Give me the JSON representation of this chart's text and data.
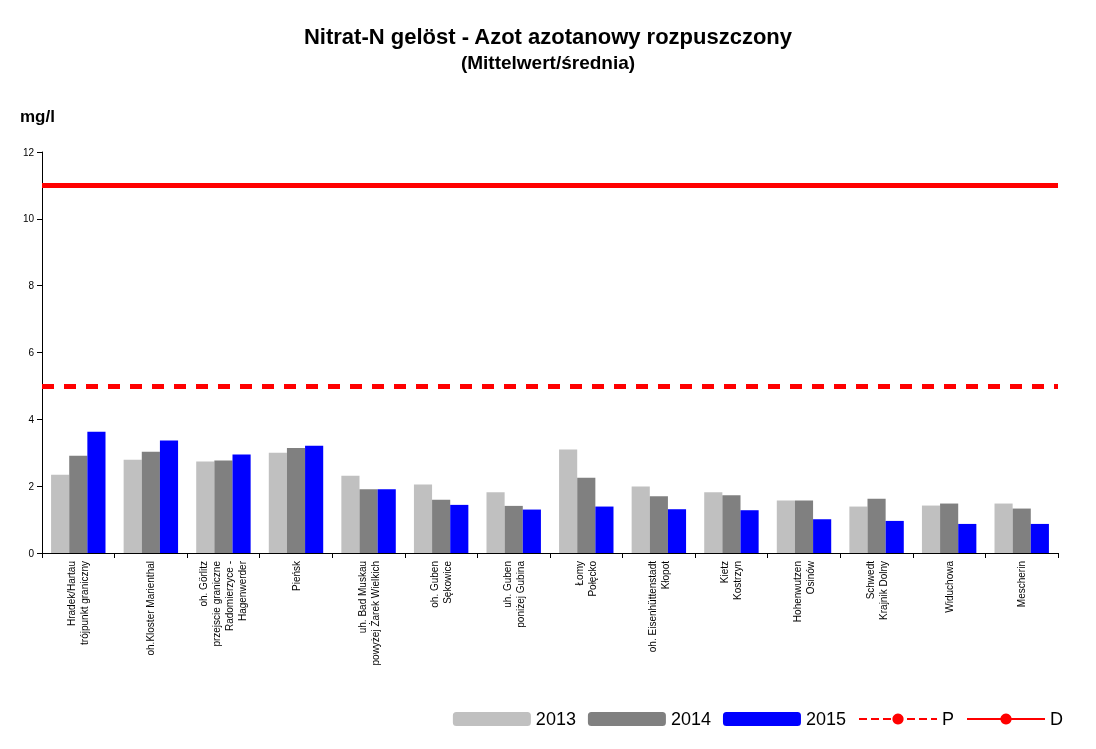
{
  "chart_data": {
    "type": "bar",
    "title": "Nitrat-N gelöst - Azot azotanowy rozpuszczony",
    "subtitle": "(Mittelwert/średnia)",
    "ylabel": "mg/l",
    "categories": [
      "Hradek/Hartau\ntrójpunkt graniczny",
      "oh.Kloster Marienthal",
      "oh. Görlitz\nprzejscie graniczne\nRadomierzyce -\nHagenwerder",
      "Pieńsk",
      "uh. Bad Muskau\npowyżej Żarek Wielkich",
      "oh. Guben\nSękowice",
      "uh. Guben\nponiżej Gubina",
      "Łomy\nPołęcko",
      "oh. Eisenhüttenstadt\nKłopot",
      "Kietz\nKostrzyn",
      "Hohenwutzen\nOsinów",
      "Schwedt\nKrajnik Dolny",
      "Widuchowa",
      "Mescherin"
    ],
    "series": [
      {
        "name": "2013",
        "color": "#c0c0c0",
        "values": [
          2.34,
          2.79,
          2.74,
          3.0,
          2.31,
          2.05,
          1.82,
          3.1,
          1.99,
          1.82,
          1.57,
          1.39,
          1.42,
          1.48
        ]
      },
      {
        "name": "2014",
        "color": "#808080",
        "values": [
          2.91,
          3.03,
          2.77,
          3.14,
          1.91,
          1.59,
          1.41,
          2.25,
          1.7,
          1.73,
          1.57,
          1.62,
          1.48,
          1.33
        ]
      },
      {
        "name": "2015",
        "color": "#0000ff",
        "values": [
          3.63,
          3.37,
          2.95,
          3.21,
          1.91,
          1.44,
          1.3,
          1.39,
          1.31,
          1.28,
          1.01,
          0.96,
          0.87,
          0.87
        ]
      }
    ],
    "ref_lines": [
      {
        "axis": "y",
        "value": 5,
        "label": "P",
        "color": "#ff0000",
        "line_style": "dashed"
      },
      {
        "axis": "y",
        "value": 11,
        "label": "D",
        "color": "#ff0000",
        "line_style": "solid"
      }
    ],
    "ylim": [
      0,
      12
    ],
    "yticks": [
      0,
      2,
      4,
      6,
      8,
      10,
      12
    ],
    "grid": false,
    "legend": "bottom right"
  }
}
